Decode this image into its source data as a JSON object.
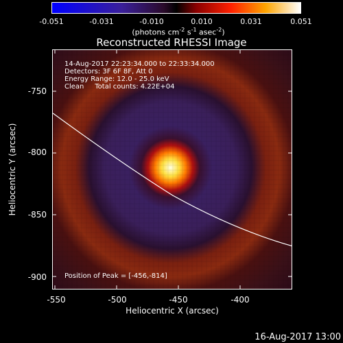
{
  "colorbar": {
    "ticks": [
      "-0.051",
      "-0.031",
      "-0.010",
      "0.010",
      "0.031",
      "0.051"
    ],
    "unit_main": "(photons cm",
    "unit_e1": "-2",
    "unit_s": " s",
    "unit_e2": "-1",
    "unit_asec": " asec",
    "unit_e3": "-2",
    "unit_close": ")"
  },
  "title": "Reconstructed RHESSI Image",
  "annotations": {
    "line1": "14-Aug-2017 22:23:34.000 to 22:33:34.000",
    "line2": "Detectors: 3F 6F 8F, Att 0",
    "line3": "Energy Range: 12.0 - 25.0 keV",
    "line4": "Clean     Total counts: 4.22E+04",
    "peak": "Position of Peak = [-456,-814]"
  },
  "axes": {
    "xlabel": "Heliocentric X (arcsec)",
    "ylabel": "Heliocentric Y (arcsec)",
    "xticks": [
      "-550",
      "-500",
      "-450",
      "-400"
    ],
    "yticks": [
      "-750",
      "-800",
      "-850",
      "-900"
    ]
  },
  "timestamp": "16-Aug-2017 13:00",
  "colors": {
    "background": "#000000",
    "ring": "#3a1f5a",
    "outer_ring": "#8a2a10",
    "peak_core": "#ffffe0",
    "limb": "#ffffff"
  }
}
